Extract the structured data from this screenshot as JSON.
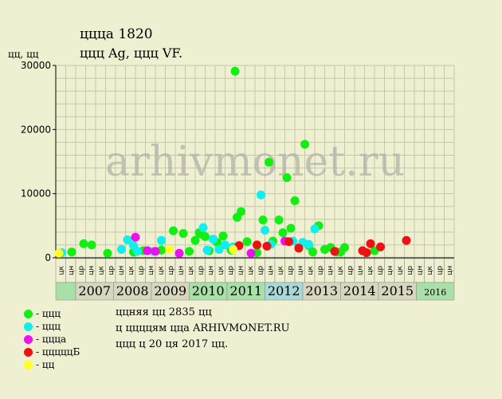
{
  "header": {
    "title": "ццца 1820",
    "subtitle": "ццц Ag, ццц VF.",
    "ylabel": "цц, цц"
  },
  "colors": {
    "green": "#11ee11",
    "cyan": "#11eeee",
    "magenta": "#ee11ee",
    "red": "#ee1111",
    "yellow": "#ffff22",
    "background": "#efefd2",
    "grid": "#c8c8a8",
    "year_bar": "#c8d8d8"
  },
  "watermark": "arhivmonet.ru",
  "legend": [
    {
      "label": "- ццц",
      "color": "#11ee11"
    },
    {
      "label": "- ццц",
      "color": "#11eeee"
    },
    {
      "label": "- ццца",
      "color": "#ee11ee"
    },
    {
      "label": "- цццццБ",
      "color": "#ee1111"
    },
    {
      "label": "- цц",
      "color": "#ffff22"
    }
  ],
  "notes": [
    "ццняя цц 2835 цц",
    "ц ццццям цца ARHIVMONET.RU",
    "ццц ц 20 ця 2017 цц."
  ],
  "chart_data": {
    "type": "scatter",
    "ylim": [
      0,
      30000
    ],
    "yticks": [
      "0",
      "10000",
      "20000",
      "30000"
    ],
    "years": [
      "2007",
      "2008",
      "2009",
      "2010",
      "2011",
      "2012",
      "2013",
      "2014",
      "2015",
      "2016"
    ],
    "year_colors": [
      "#d7d7c0",
      "#d7d7c0",
      "#d7d7c0",
      "#a8e0a8",
      "#a8e0a8",
      "#a8d8d8",
      "#d7d7c0",
      "#d7d7c0",
      "#d7d7c0",
      "#a8e0a8"
    ],
    "month_labels": [
      "цк",
      "цн",
      "цр",
      "цн",
      "цк",
      "цр",
      "цн",
      "цк",
      "цр",
      "цн",
      "цк",
      "цр",
      "цн",
      "цк",
      "цр",
      "цн",
      "цк",
      "цр",
      "цн",
      "цк",
      "цр",
      "цн",
      "цк",
      "цр",
      "цн",
      "цк",
      "цр",
      "цн",
      "цк",
      "цр",
      "цн",
      "цк",
      "цр",
      "цн",
      "цк",
      "цр",
      "цн",
      "цк",
      "цр",
      "цн"
    ],
    "series": [
      {
        "color": "#11ee11",
        "points": [
          [
            0.8,
            900
          ],
          [
            1.4,
            2200
          ],
          [
            1.8,
            2000
          ],
          [
            2.6,
            700
          ],
          [
            3.9,
            900
          ],
          [
            4.4,
            1100
          ],
          [
            5.3,
            1200
          ],
          [
            5.9,
            4200
          ],
          [
            6.4,
            3800
          ],
          [
            6.7,
            1000
          ],
          [
            7.0,
            2700
          ],
          [
            7.2,
            3900
          ],
          [
            7.3,
            3700
          ],
          [
            7.5,
            3300
          ],
          [
            7.7,
            1100
          ],
          [
            8.1,
            2400
          ],
          [
            8.4,
            3400
          ],
          [
            8.8,
            1200
          ],
          [
            9.0,
            29100
          ],
          [
            9.1,
            6300
          ],
          [
            9.3,
            7200
          ],
          [
            9.6,
            2500
          ],
          [
            10.1,
            800
          ],
          [
            10.4,
            5900
          ],
          [
            10.7,
            14900
          ],
          [
            10.9,
            2600
          ],
          [
            11.2,
            5900
          ],
          [
            11.4,
            3900
          ],
          [
            11.6,
            12500
          ],
          [
            11.8,
            4600
          ],
          [
            12.0,
            8900
          ],
          [
            12.2,
            1600
          ],
          [
            12.5,
            17700
          ],
          [
            12.7,
            1900
          ],
          [
            12.9,
            900
          ],
          [
            13.2,
            5000
          ],
          [
            13.5,
            1300
          ],
          [
            13.8,
            1600
          ],
          [
            14.1,
            900
          ],
          [
            14.3,
            900
          ],
          [
            14.5,
            1600
          ],
          [
            16.0,
            1100
          ]
        ]
      },
      {
        "color": "#11eeee",
        "points": [
          [
            0.3,
            800
          ],
          [
            3.3,
            1300
          ],
          [
            3.6,
            2800
          ],
          [
            3.9,
            1900
          ],
          [
            4.1,
            1000
          ],
          [
            4.9,
            1000
          ],
          [
            5.3,
            2700
          ],
          [
            7.9,
            2900
          ],
          [
            8.2,
            1300
          ],
          [
            8.5,
            2000
          ],
          [
            8.9,
            1700
          ],
          [
            10.3,
            9800
          ],
          [
            10.5,
            4300
          ],
          [
            10.8,
            2100
          ],
          [
            11.9,
            2600
          ],
          [
            12.4,
            2400
          ],
          [
            12.7,
            2100
          ],
          [
            13.0,
            4500
          ],
          [
            7.4,
            4700
          ],
          [
            7.6,
            1200
          ]
        ]
      },
      {
        "color": "#ee11ee",
        "points": [
          [
            4.0,
            3200
          ],
          [
            4.6,
            1100
          ],
          [
            5.0,
            1000
          ],
          [
            6.2,
            700
          ],
          [
            9.8,
            700
          ],
          [
            11.5,
            2600
          ]
        ]
      },
      {
        "color": "#ee1111",
        "points": [
          [
            9.2,
            1900
          ],
          [
            10.1,
            2000
          ],
          [
            10.6,
            1800
          ],
          [
            11.7,
            2500
          ],
          [
            12.2,
            1500
          ],
          [
            14.0,
            1000
          ],
          [
            15.4,
            1100
          ],
          [
            15.6,
            800
          ],
          [
            15.8,
            2200
          ],
          [
            16.3,
            1700
          ],
          [
            17.6,
            2700
          ]
        ]
      },
      {
        "color": "#ffff22",
        "points": [
          [
            0.1,
            700
          ],
          [
            5.7,
            1300
          ],
          [
            8.9,
            1300
          ]
        ]
      }
    ]
  }
}
